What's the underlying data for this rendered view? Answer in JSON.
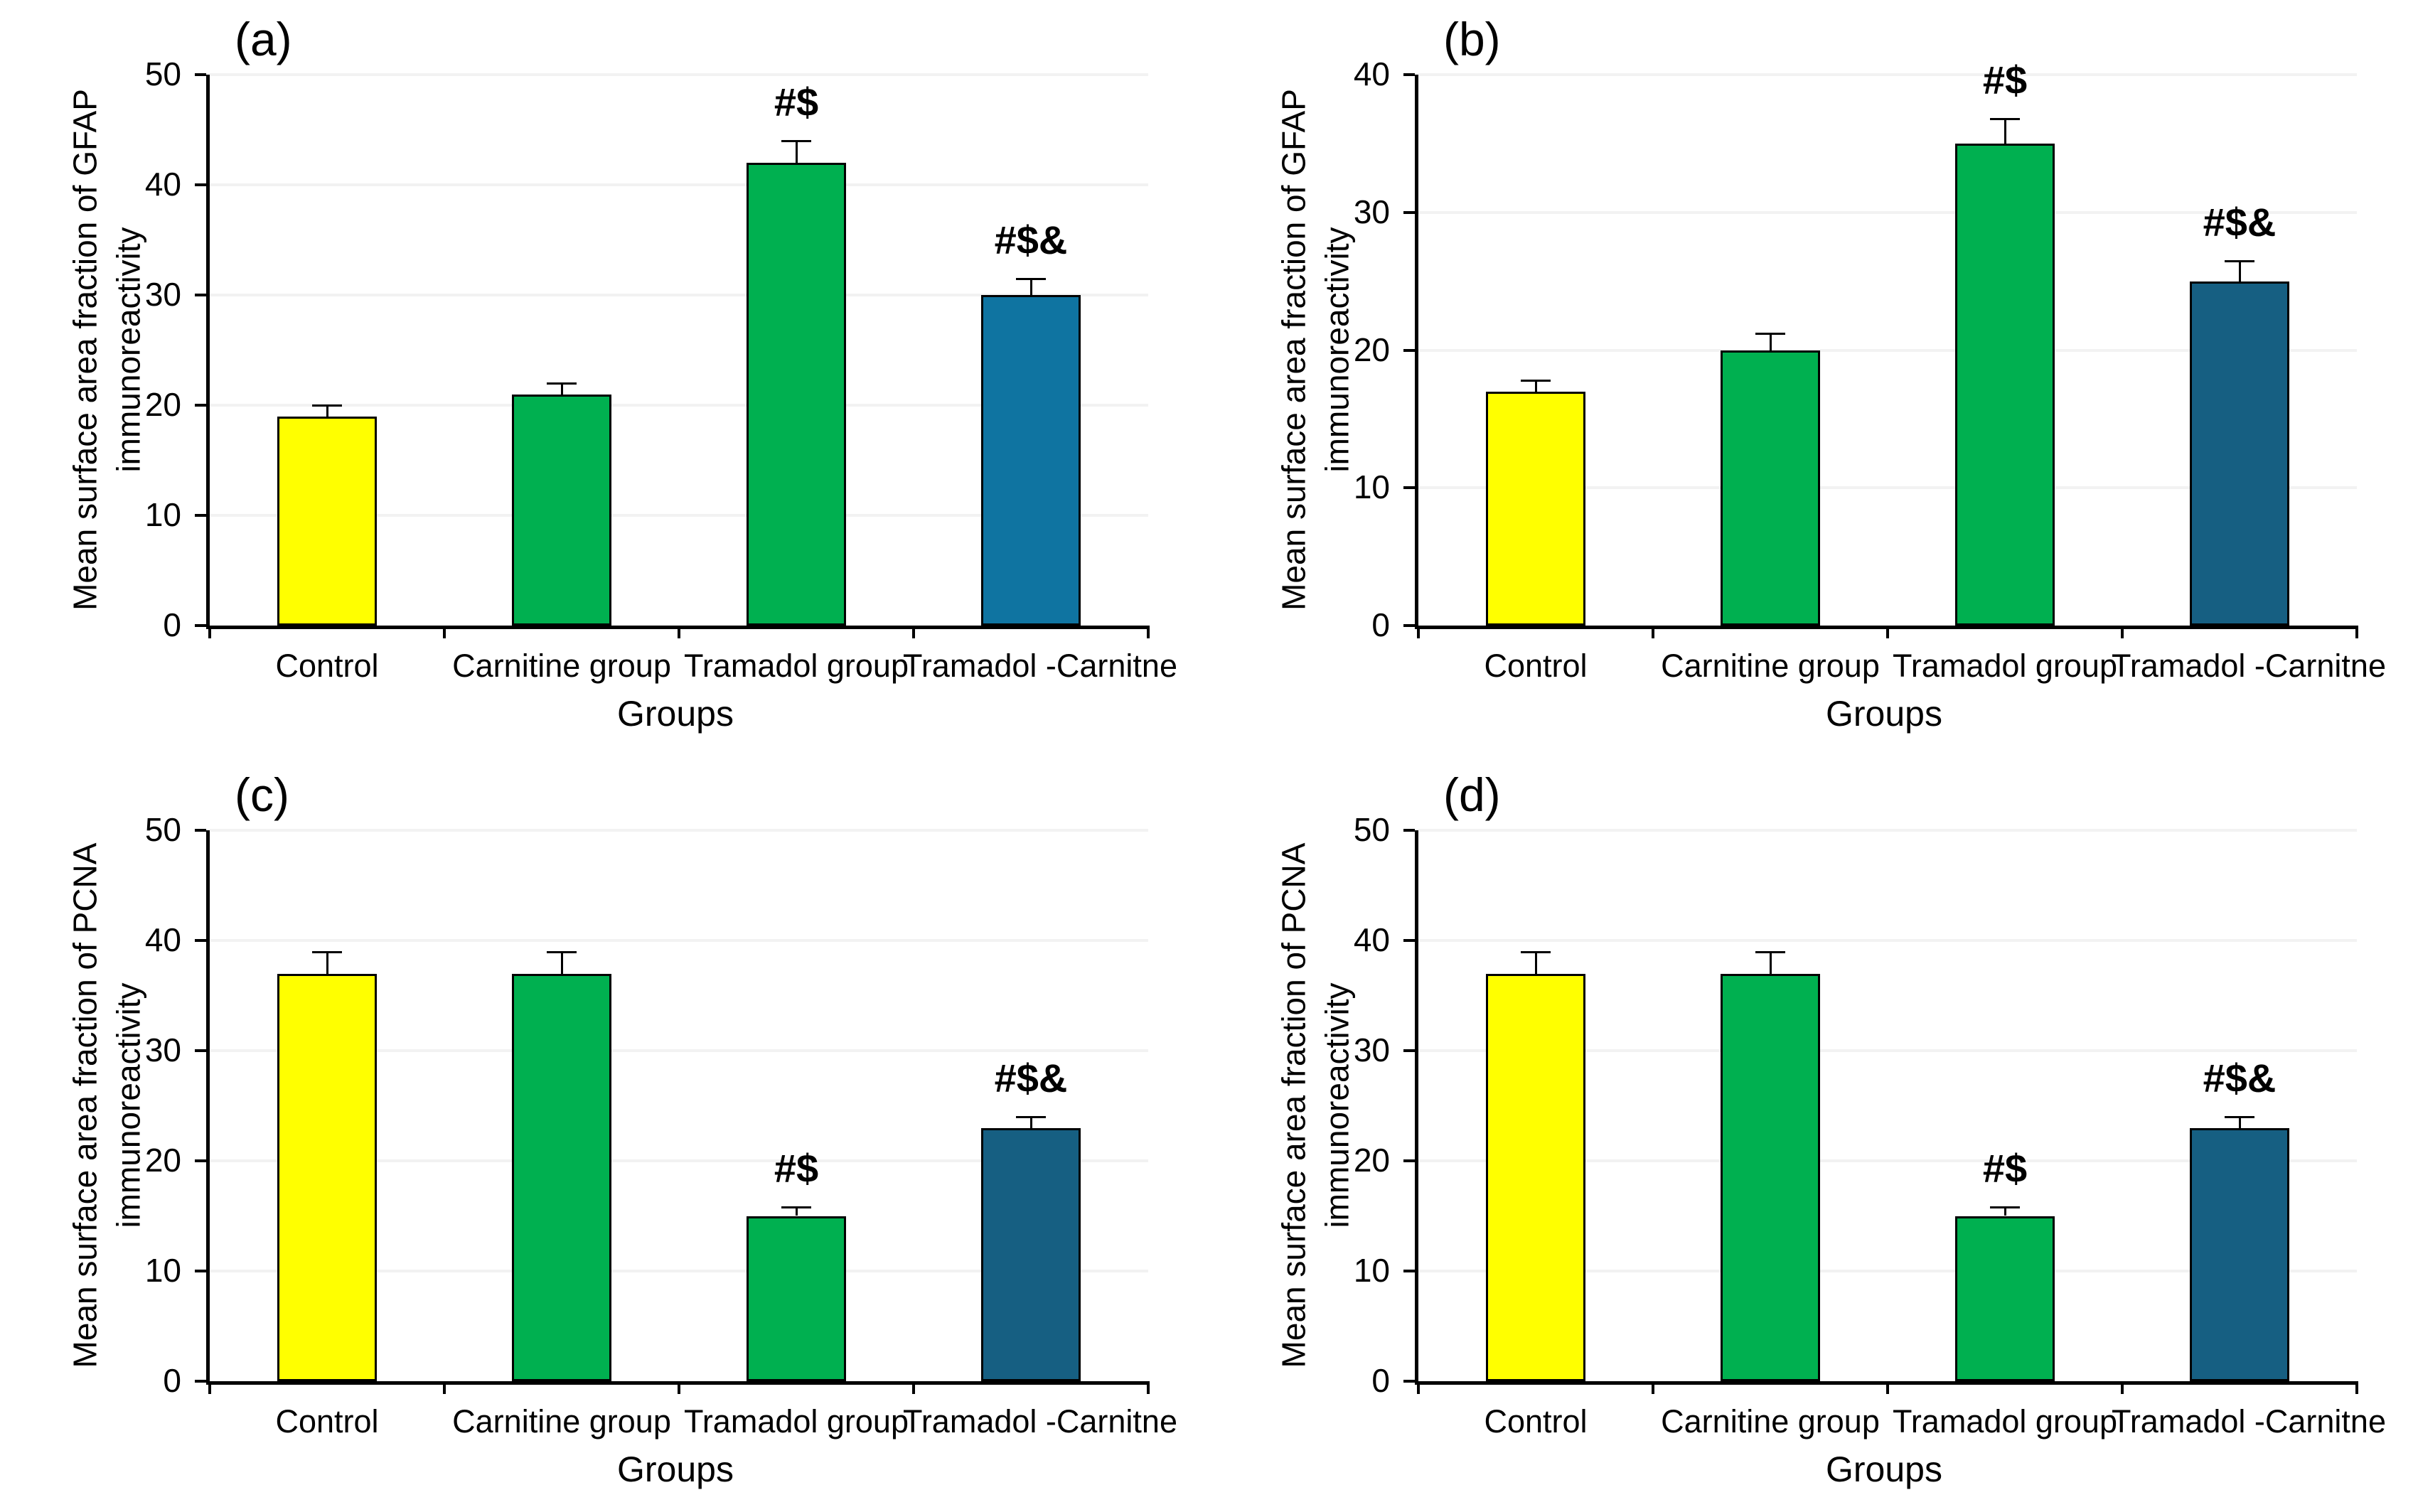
{
  "figure": {
    "background": "#ffffff",
    "text_color": "#000000",
    "gridline_color": "#f2f2f2",
    "axis_color": "#000000",
    "bar_border_color": "#000000",
    "error_bar_color": "#000000"
  },
  "chart_data": [
    {
      "panel_label": "(a)",
      "type": "bar",
      "ylabel": "Mean surface area fraction of GFAP\nimmunoreactivity",
      "xlabel": "Groups",
      "categories": [
        "Control",
        "Carnitine group",
        "Tramadol group",
        "Tramadol -Carnitne"
      ],
      "values": [
        19,
        21,
        42,
        30
      ],
      "errors_plus": [
        1,
        1,
        2,
        1.5
      ],
      "annotations": [
        "",
        "",
        "#$",
        "#$&"
      ],
      "bar_colors": [
        "#ffff00",
        "#00b050",
        "#00b050",
        "#0f74a1"
      ],
      "ylim": [
        0,
        50
      ],
      "ytick_step": 10,
      "grid": true,
      "legend": "none"
    },
    {
      "panel_label": "(b)",
      "type": "bar",
      "ylabel": "Mean surface area fraction of GFAP\nimmunoreactivity",
      "xlabel": "Groups",
      "categories": [
        "Control",
        "Carnitine group",
        "Tramadol group",
        "Tramadol -Carnitne"
      ],
      "values": [
        17,
        20,
        35,
        25
      ],
      "errors_plus": [
        0.8,
        1.2,
        1.8,
        1.5
      ],
      "annotations": [
        "",
        "",
        "#$",
        "#$&"
      ],
      "bar_colors": [
        "#ffff00",
        "#00b050",
        "#00b050",
        "#165f82"
      ],
      "ylim": [
        0,
        40
      ],
      "ytick_step": 10,
      "grid": true,
      "legend": "none"
    },
    {
      "panel_label": "(c)",
      "type": "bar",
      "ylabel": "Mean surface area fraction of PCNA\nimmunoreactivity",
      "xlabel": "Groups",
      "categories": [
        "Control",
        "Carnitine group",
        "Tramadol group",
        "Tramadol -Carnitne"
      ],
      "values": [
        37,
        37,
        15,
        23
      ],
      "errors_plus": [
        2,
        2,
        0.8,
        1
      ],
      "annotations": [
        "",
        "",
        "#$",
        "#$&"
      ],
      "bar_colors": [
        "#ffff00",
        "#00b050",
        "#00b050",
        "#165f82"
      ],
      "ylim": [
        0,
        50
      ],
      "ytick_step": 10,
      "grid": true,
      "legend": "none"
    },
    {
      "panel_label": "(d)",
      "type": "bar",
      "ylabel": "Mean surface area fraction of PCNA\nimmunoreactivity",
      "xlabel": "Groups",
      "categories": [
        "Control",
        "Carnitine group",
        "Tramadol group",
        "Tramadol -Carnitne"
      ],
      "values": [
        37,
        37,
        15,
        23
      ],
      "errors_plus": [
        2,
        2,
        0.8,
        1
      ],
      "annotations": [
        "",
        "",
        "#$",
        "#$&"
      ],
      "bar_colors": [
        "#ffff00",
        "#00b050",
        "#00b050",
        "#165f82"
      ],
      "ylim": [
        0,
        50
      ],
      "ytick_step": 10,
      "grid": true,
      "legend": "none"
    }
  ]
}
